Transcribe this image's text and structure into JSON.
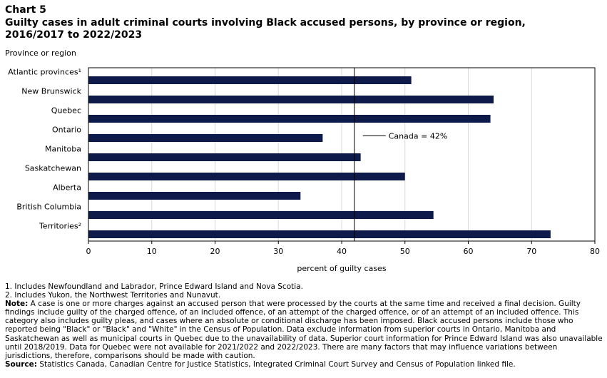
{
  "header": {
    "chart_label": "Chart 5",
    "title": "Guilty cases in adult criminal courts involving Black accused persons, by province or region, 2016/2017 to 2022/2023"
  },
  "chart_data": {
    "type": "bar",
    "orientation": "horizontal",
    "ylabel": "Province or region",
    "xlabel": "percent of guilty cases",
    "categories": [
      "Atlantic provinces¹",
      "New Brunswick",
      "Quebec",
      "Ontario",
      "Manitoba",
      "Saskatchewan",
      "Alberta",
      "British Columbia",
      "Territories²"
    ],
    "values": [
      51,
      64,
      63.5,
      37,
      43,
      50,
      33.5,
      54.5,
      73
    ],
    "xlim": [
      0,
      80
    ],
    "xticks": [
      0,
      10,
      20,
      30,
      40,
      50,
      60,
      70,
      80
    ],
    "grid": true,
    "reference_line": {
      "value": 42,
      "label": "Canada = 42%"
    },
    "bar_color": "#0d1a4a"
  },
  "notes": {
    "footnote1": "1. Includes Newfoundland and Labrador, Prince Edward Island and Nova Scotia.",
    "footnote2": "2. Includes Yukon, the Northwest Territories and Nunavut.",
    "note_label": "Note:",
    "note_text": " A case is one or more charges against an accused person that were processed by the courts at the same time and received a final decision. Guilty findings include guilty of the charged offence, of an included offence, of an attempt of the charged offence, or of an attempt of an included offence. This category also includes guilty pleas, and cases where an absolute or conditional discharge has been imposed. Black accused persons include those who reported being \"Black\" or \"Black\" and \"White\" in the Census of Population. Data exclude information from superior courts in Ontario, Manitoba and Saskatchewan as well as municipal courts in Quebec due to the unavailability of data. Superior court information for Prince Edward Island was also unavailable until 2018/2019. Data for Quebec were not available for 2021/2022 and 2022/2023. There are many factors that may influence variations between jurisdictions, therefore, comparisons should be made with caution.",
    "source_label": "Source:",
    "source_text": " Statistics Canada, Canadian Centre for Justice Statistics, Integrated Criminal Court Survey and Census of Population linked file."
  }
}
